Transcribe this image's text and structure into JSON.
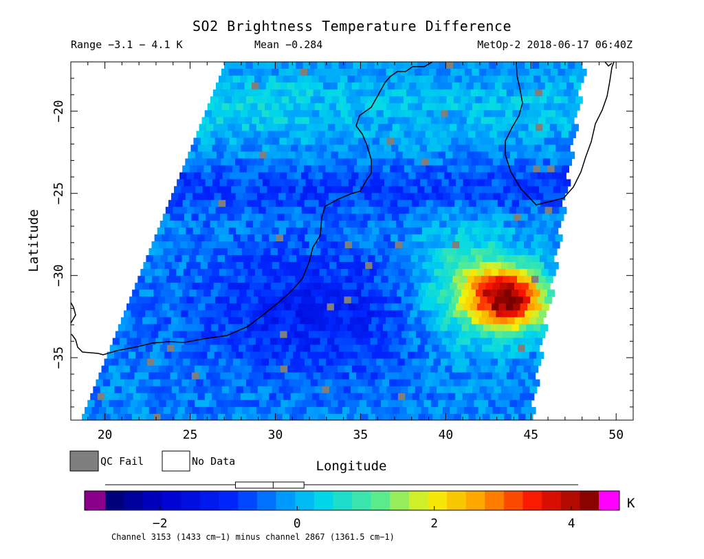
{
  "header": {
    "title": "SO2 Brightness Temperature Difference",
    "range_label": "Range −3.1 − 4.1 K",
    "mean_label": "Mean −0.284",
    "satellite_label": "MetOp-2 2018-06-17 06:40Z"
  },
  "legend": {
    "qc_fail_label": "QC Fail",
    "qc_fail_color": "#7f7f7f",
    "no_data_label": "No Data",
    "no_data_color": "#ffffff"
  },
  "colorbar": {
    "min": -2.8,
    "max": 4.4,
    "under_color": "#8b008b",
    "over_color": "#ff00ff",
    "unit": "K",
    "ticks": [
      -2,
      0,
      2,
      4
    ],
    "tick_labels": [
      "−2",
      "0",
      "2",
      "4"
    ],
    "stats_box": {
      "whisker_low": -2.8,
      "q1": -0.9,
      "median": -0.35,
      "q3": 0.1,
      "whisker_high": 4.1
    },
    "footnote": "Channel 3153 (1433 cm−1) minus channel 2867 (1361.5 cm−1)"
  },
  "chart_data": {
    "type": "heatmap",
    "title": "SO2 Brightness Temperature Difference",
    "xlabel": "Longitude",
    "ylabel": "Latitude",
    "xlim": [
      18,
      51
    ],
    "ylim": [
      -38.8,
      -17
    ],
    "xticks": [
      20,
      25,
      30,
      35,
      40,
      45,
      50
    ],
    "xtick_labels": [
      "20",
      "25",
      "30",
      "35",
      "40",
      "45",
      "50"
    ],
    "yticks": [
      -20,
      -25,
      -30,
      -35
    ],
    "ytick_labels": [
      "−20",
      "−25",
      "−30",
      "−35"
    ],
    "value_range": [
      -3.1,
      4.1
    ],
    "mean": -0.284,
    "swath": {
      "left_edge": [
        [
          -17,
          27.0
        ],
        [
          -38.8,
          18.5
        ]
      ],
      "right_edge": [
        [
          -17,
          48.0
        ],
        [
          -38.8,
          44.8
        ]
      ]
    },
    "anomaly": {
      "center_lon": 43.5,
      "center_lat": -31.2,
      "peak_value": 4.1
    },
    "grid": false
  }
}
